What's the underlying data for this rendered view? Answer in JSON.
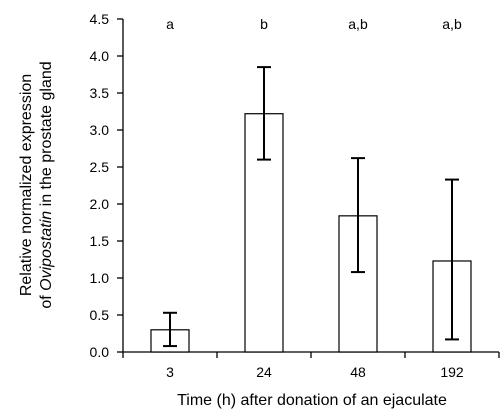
{
  "chart_data": {
    "type": "bar",
    "categories": [
      "3",
      "24",
      "48",
      "192"
    ],
    "values": [
      0.3,
      3.22,
      1.84,
      1.23
    ],
    "error_high": [
      0.53,
      3.85,
      2.62,
      2.33
    ],
    "error_low": [
      0.08,
      2.6,
      1.08,
      0.17
    ],
    "significance_labels": [
      "a",
      "b",
      "a,b",
      "a,b"
    ],
    "xlabel": "Time (h) after donation of an ejaculate",
    "ylabel_line1": "Relative normalized expression",
    "ylabel_line2_prefix": "of ",
    "ylabel_line2_italic": "Ovipostatin",
    "ylabel_line2_suffix": " in the prostate gland",
    "ylim": [
      0,
      4.5
    ],
    "yticks": [
      "0.0",
      "0.5",
      "1.0",
      "1.5",
      "2.0",
      "2.5",
      "3.0",
      "3.5",
      "4.0",
      "4.5"
    ],
    "grid": false,
    "bar_fill": "#ffffff",
    "bar_stroke": "#000000"
  }
}
